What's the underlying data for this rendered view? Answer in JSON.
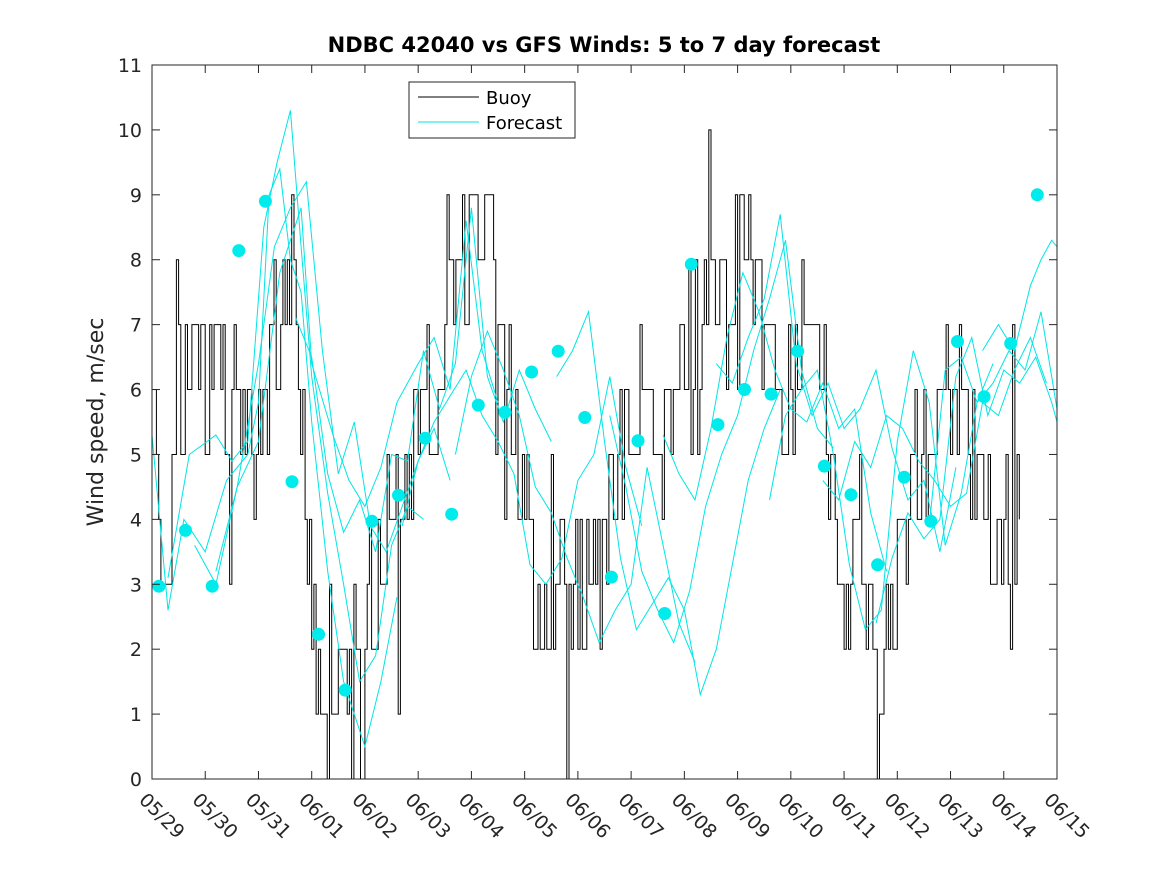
{
  "chart_data": {
    "type": "line",
    "title": "NDBC 42040 vs GFS Winds: 5 to 7 day forecast",
    "xlabel": "",
    "ylabel": "Wind speed, m/sec",
    "ylim": [
      0,
      11
    ],
    "yticks": [
      0,
      1,
      2,
      3,
      4,
      5,
      6,
      7,
      8,
      9,
      10,
      11
    ],
    "xlim": [
      0,
      17
    ],
    "x_unit": "days since 05/29",
    "xticks": [
      0,
      1,
      2,
      3,
      4,
      5,
      6,
      7,
      8,
      9,
      10,
      11,
      12,
      13,
      14,
      15,
      16,
      17
    ],
    "xtick_labels": [
      "05/29",
      "05/30",
      "05/31",
      "06/01",
      "06/02",
      "06/03",
      "06/04",
      "06/05",
      "06/06",
      "06/07",
      "06/08",
      "06/09",
      "06/10",
      "06/11",
      "06/12",
      "06/13",
      "06/14",
      "06/15"
    ],
    "grid": false,
    "legend": {
      "position": "top-center",
      "entries": [
        "Buoy",
        "Forecast"
      ]
    },
    "colors": {
      "buoy": "#000000",
      "forecast": "#00e5e5",
      "marker": "#00ecec",
      "axis": "#262626"
    },
    "buoy_profile": [
      [
        0.0,
        5.5
      ],
      [
        0.25,
        3.0
      ],
      [
        0.45,
        5.5
      ],
      [
        0.7,
        7.0
      ],
      [
        0.9,
        5.5
      ],
      [
        1.1,
        6.5
      ],
      [
        1.4,
        6.0
      ],
      [
        1.75,
        6.0
      ],
      [
        2.05,
        5.0
      ],
      [
        2.3,
        7.0
      ],
      [
        2.55,
        8.5
      ],
      [
        2.75,
        7.0
      ],
      [
        2.9,
        4.0
      ],
      [
        3.1,
        1.5
      ],
      [
        3.5,
        2.0
      ],
      [
        4.0,
        1.5
      ],
      [
        4.3,
        3.5
      ],
      [
        4.7,
        4.5
      ],
      [
        5.0,
        5.0
      ],
      [
        5.5,
        6.5
      ],
      [
        5.8,
        8.5
      ],
      [
        6.3,
        8.0
      ],
      [
        6.6,
        7.0
      ],
      [
        6.9,
        4.5
      ],
      [
        7.3,
        2.5
      ],
      [
        7.8,
        3.0
      ],
      [
        8.1,
        2.5
      ],
      [
        8.5,
        3.5
      ],
      [
        8.9,
        5.0
      ],
      [
        9.3,
        6.0
      ],
      [
        9.6,
        5.0
      ],
      [
        10.0,
        6.5
      ],
      [
        10.4,
        7.0
      ],
      [
        10.8,
        7.0
      ],
      [
        11.1,
        8.5
      ],
      [
        11.5,
        6.5
      ],
      [
        11.85,
        6.0
      ],
      [
        12.1,
        6.5
      ],
      [
        12.4,
        7.5
      ],
      [
        12.7,
        5.5
      ],
      [
        13.0,
        1.5
      ],
      [
        13.3,
        4.5
      ],
      [
        13.6,
        1.0
      ],
      [
        13.9,
        2.5
      ],
      [
        14.3,
        5.0
      ],
      [
        14.8,
        6.0
      ],
      [
        15.1,
        6.5
      ],
      [
        15.4,
        5.0
      ],
      [
        15.8,
        3.5
      ],
      [
        16.1,
        4.0
      ],
      [
        16.3,
        4.0
      ]
    ],
    "forecast_runs": [
      [
        [
          0.0,
          5.3
        ],
        [
          0.3,
          2.6
        ],
        [
          0.6,
          4.0
        ],
        [
          1.0,
          3.5
        ],
        [
          1.4,
          4.6
        ],
        [
          1.8,
          5.0
        ],
        [
          2.0,
          5.8
        ],
        [
          2.2,
          9.0
        ],
        [
          2.4,
          9.4
        ],
        [
          2.6,
          8.0
        ],
        [
          2.8,
          7.5
        ],
        [
          3.0,
          5.5
        ],
        [
          3.3,
          3.2
        ],
        [
          3.6,
          1.5
        ],
        [
          4.0,
          0.5
        ],
        [
          4.3,
          1.5
        ],
        [
          4.6,
          2.8
        ]
      ],
      [
        [
          0.3,
          3.1
        ],
        [
          0.7,
          5.0
        ],
        [
          1.2,
          5.3
        ],
        [
          1.5,
          4.9
        ],
        [
          1.8,
          5.2
        ],
        [
          2.1,
          8.5
        ],
        [
          2.35,
          9.5
        ],
        [
          2.6,
          10.3
        ],
        [
          2.8,
          8.2
        ],
        [
          3.0,
          6.2
        ],
        [
          3.3,
          4.4
        ],
        [
          3.6,
          3.0
        ],
        [
          3.9,
          1.5
        ],
        [
          4.2,
          1.9
        ],
        [
          4.5,
          3.6
        ],
        [
          4.8,
          4.2
        ],
        [
          5.1,
          4.0
        ]
      ],
      [
        [
          0.8,
          3.6
        ],
        [
          1.2,
          3.0
        ],
        [
          1.6,
          4.5
        ],
        [
          2.0,
          6.4
        ],
        [
          2.3,
          8.2
        ],
        [
          2.6,
          8.8
        ],
        [
          2.9,
          9.2
        ],
        [
          3.2,
          6.6
        ],
        [
          3.5,
          4.7
        ],
        [
          3.8,
          5.5
        ],
        [
          4.1,
          3.9
        ],
        [
          4.4,
          3.5
        ],
        [
          4.7,
          4.2
        ],
        [
          5.0,
          4.9
        ],
        [
          5.3,
          5.4
        ],
        [
          5.6,
          4.6
        ]
      ],
      [
        [
          1.2,
          3.2
        ],
        [
          1.6,
          4.5
        ],
        [
          2.0,
          5.2
        ],
        [
          2.4,
          7.8
        ],
        [
          2.8,
          8.8
        ],
        [
          3.0,
          6.4
        ],
        [
          3.4,
          5.3
        ],
        [
          3.7,
          4.6
        ],
        [
          4.0,
          4.2
        ],
        [
          4.3,
          4.8
        ],
        [
          4.6,
          5.8
        ],
        [
          5.0,
          6.4
        ],
        [
          5.3,
          6.8
        ],
        [
          5.6,
          6.0
        ],
        [
          5.9,
          8.6
        ],
        [
          6.2,
          6.6
        ],
        [
          6.5,
          5.8
        ]
      ],
      [
        [
          2.7,
          7.1
        ],
        [
          3.0,
          6.5
        ],
        [
          3.3,
          4.7
        ],
        [
          3.6,
          3.8
        ],
        [
          3.9,
          4.3
        ],
        [
          4.2,
          3.5
        ],
        [
          4.5,
          5.0
        ],
        [
          4.8,
          4.9
        ],
        [
          5.1,
          6.6
        ],
        [
          5.4,
          5.7
        ],
        [
          5.7,
          6.4
        ],
        [
          6.0,
          8.8
        ],
        [
          6.3,
          6.2
        ],
        [
          6.6,
          5.5
        ],
        [
          6.9,
          6.3
        ],
        [
          7.2,
          5.7
        ],
        [
          7.5,
          5.2
        ]
      ],
      [
        [
          4.7,
          3.9
        ],
        [
          5.0,
          4.9
        ],
        [
          5.3,
          5.5
        ],
        [
          5.6,
          5.9
        ],
        [
          5.9,
          6.3
        ],
        [
          6.2,
          5.6
        ],
        [
          6.5,
          5.2
        ],
        [
          6.8,
          4.7
        ],
        [
          7.1,
          3.3
        ],
        [
          7.4,
          3.0
        ],
        [
          7.7,
          3.4
        ],
        [
          8.0,
          4.6
        ],
        [
          8.3,
          5.0
        ],
        [
          8.6,
          6.2
        ],
        [
          8.9,
          4.8
        ],
        [
          9.2,
          3.9
        ]
      ],
      [
        [
          5.7,
          5.0
        ],
        [
          6.0,
          6.2
        ],
        [
          6.3,
          6.9
        ],
        [
          6.6,
          6.3
        ],
        [
          6.9,
          5.6
        ],
        [
          7.2,
          4.5
        ],
        [
          7.5,
          4.1
        ],
        [
          7.8,
          3.4
        ],
        [
          8.1,
          2.8
        ],
        [
          8.4,
          2.1
        ],
        [
          8.7,
          2.6
        ],
        [
          9.0,
          3.0
        ],
        [
          9.3,
          4.8
        ],
        [
          9.6,
          3.6
        ],
        [
          9.9,
          2.4
        ],
        [
          10.2,
          1.8
        ]
      ],
      [
        [
          7.6,
          6.2
        ],
        [
          7.9,
          6.6
        ],
        [
          8.2,
          7.2
        ],
        [
          8.5,
          5.2
        ],
        [
          8.8,
          3.4
        ],
        [
          9.1,
          2.3
        ],
        [
          9.4,
          2.7
        ],
        [
          9.7,
          3.1
        ],
        [
          10.0,
          2.6
        ],
        [
          10.3,
          1.3
        ],
        [
          10.6,
          2.0
        ],
        [
          10.9,
          3.3
        ],
        [
          11.2,
          4.6
        ],
        [
          11.5,
          5.4
        ],
        [
          11.8,
          6.0
        ]
      ],
      [
        [
          8.6,
          5.6
        ],
        [
          8.9,
          4.5
        ],
        [
          9.2,
          3.2
        ],
        [
          9.5,
          2.6
        ],
        [
          9.8,
          2.1
        ],
        [
          10.1,
          2.9
        ],
        [
          10.4,
          4.2
        ],
        [
          10.7,
          5.0
        ],
        [
          11.0,
          5.6
        ],
        [
          11.3,
          6.6
        ],
        [
          11.6,
          7.4
        ],
        [
          11.9,
          8.3
        ],
        [
          12.2,
          6.3
        ],
        [
          12.5,
          5.4
        ],
        [
          12.8,
          5.1
        ]
      ],
      [
        [
          9.6,
          5.3
        ],
        [
          9.9,
          4.7
        ],
        [
          10.2,
          4.3
        ],
        [
          10.5,
          5.4
        ],
        [
          10.8,
          6.8
        ],
        [
          11.1,
          7.8
        ],
        [
          11.4,
          7.2
        ],
        [
          11.7,
          6.3
        ],
        [
          12.0,
          5.7
        ],
        [
          12.3,
          5.5
        ],
        [
          12.6,
          6.1
        ],
        [
          12.9,
          5.4
        ],
        [
          13.2,
          5.7
        ],
        [
          13.5,
          4.1
        ],
        [
          13.8,
          3.2
        ]
      ],
      [
        [
          10.6,
          6.4
        ],
        [
          10.9,
          6.1
        ],
        [
          11.2,
          6.8
        ],
        [
          11.5,
          7.4
        ],
        [
          11.8,
          8.7
        ],
        [
          12.1,
          6.4
        ],
        [
          12.4,
          5.6
        ],
        [
          12.7,
          6.1
        ],
        [
          13.0,
          5.4
        ],
        [
          13.3,
          5.7
        ],
        [
          13.6,
          6.3
        ],
        [
          13.9,
          5.1
        ],
        [
          14.2,
          4.3
        ],
        [
          14.5,
          4.6
        ],
        [
          14.8,
          3.5
        ],
        [
          15.1,
          4.8
        ]
      ],
      [
        [
          11.6,
          4.3
        ],
        [
          11.9,
          5.6
        ],
        [
          12.2,
          6.0
        ],
        [
          12.5,
          6.3
        ],
        [
          12.8,
          5.0
        ],
        [
          13.1,
          3.3
        ],
        [
          13.4,
          2.3
        ],
        [
          13.7,
          2.6
        ],
        [
          14.0,
          5.2
        ],
        [
          14.3,
          6.6
        ],
        [
          14.6,
          5.8
        ],
        [
          14.9,
          3.6
        ],
        [
          15.2,
          4.4
        ],
        [
          15.5,
          5.8
        ],
        [
          15.8,
          6.4
        ]
      ],
      [
        [
          12.6,
          4.6
        ],
        [
          12.9,
          4.3
        ],
        [
          13.2,
          5.2
        ],
        [
          13.5,
          4.8
        ],
        [
          13.8,
          5.6
        ],
        [
          14.1,
          5.4
        ],
        [
          14.4,
          4.9
        ],
        [
          14.7,
          4.6
        ],
        [
          15.0,
          4.2
        ],
        [
          15.3,
          4.4
        ],
        [
          15.6,
          5.8
        ],
        [
          15.9,
          5.6
        ],
        [
          16.2,
          6.3
        ],
        [
          16.5,
          6.8
        ],
        [
          16.8,
          6.1
        ]
      ],
      [
        [
          13.6,
          2.4
        ],
        [
          13.9,
          3.4
        ],
        [
          14.2,
          4.1
        ],
        [
          14.5,
          3.7
        ],
        [
          14.8,
          4.0
        ],
        [
          15.1,
          6.2
        ],
        [
          15.4,
          6.8
        ],
        [
          15.7,
          5.6
        ],
        [
          16.0,
          6.3
        ],
        [
          16.3,
          6.1
        ],
        [
          16.6,
          6.5
        ],
        [
          16.9,
          5.8
        ],
        [
          17.0,
          5.5
        ]
      ],
      [
        [
          14.6,
          3.9
        ],
        [
          14.9,
          6.3
        ],
        [
          15.2,
          6.5
        ],
        [
          15.5,
          5.8
        ],
        [
          15.8,
          6.1
        ],
        [
          16.1,
          6.6
        ],
        [
          16.4,
          6.3
        ],
        [
          16.7,
          7.2
        ],
        [
          17.0,
          5.7
        ]
      ],
      [
        [
          15.6,
          6.6
        ],
        [
          15.9,
          7.0
        ],
        [
          16.2,
          6.6
        ],
        [
          16.5,
          7.6
        ],
        [
          16.7,
          8.0
        ],
        [
          16.9,
          8.3
        ],
        [
          17.0,
          8.2
        ]
      ]
    ],
    "forecast_markers": [
      [
        0.13,
        2.97
      ],
      [
        0.63,
        3.83
      ],
      [
        1.13,
        2.97
      ],
      [
        1.63,
        8.14
      ],
      [
        2.13,
        8.9
      ],
      [
        2.63,
        4.58
      ],
      [
        3.13,
        2.23
      ],
      [
        3.63,
        1.37
      ],
      [
        4.13,
        3.97
      ],
      [
        4.63,
        4.37
      ],
      [
        5.13,
        5.25
      ],
      [
        5.63,
        4.08
      ],
      [
        6.13,
        5.76
      ],
      [
        6.63,
        5.65
      ],
      [
        7.13,
        6.27
      ],
      [
        7.63,
        6.59
      ],
      [
        8.13,
        5.57
      ],
      [
        8.63,
        3.11
      ],
      [
        9.13,
        5.21
      ],
      [
        9.63,
        2.55
      ],
      [
        10.13,
        7.93
      ],
      [
        10.63,
        5.46
      ],
      [
        11.13,
        6.0
      ],
      [
        11.63,
        5.93
      ],
      [
        12.13,
        6.59
      ],
      [
        12.63,
        4.82
      ],
      [
        13.13,
        4.38
      ],
      [
        13.63,
        3.3
      ],
      [
        14.13,
        4.65
      ],
      [
        14.63,
        3.97
      ],
      [
        15.13,
        6.74
      ],
      [
        15.63,
        5.89
      ],
      [
        16.13,
        6.71
      ],
      [
        16.63,
        9.0
      ]
    ]
  }
}
